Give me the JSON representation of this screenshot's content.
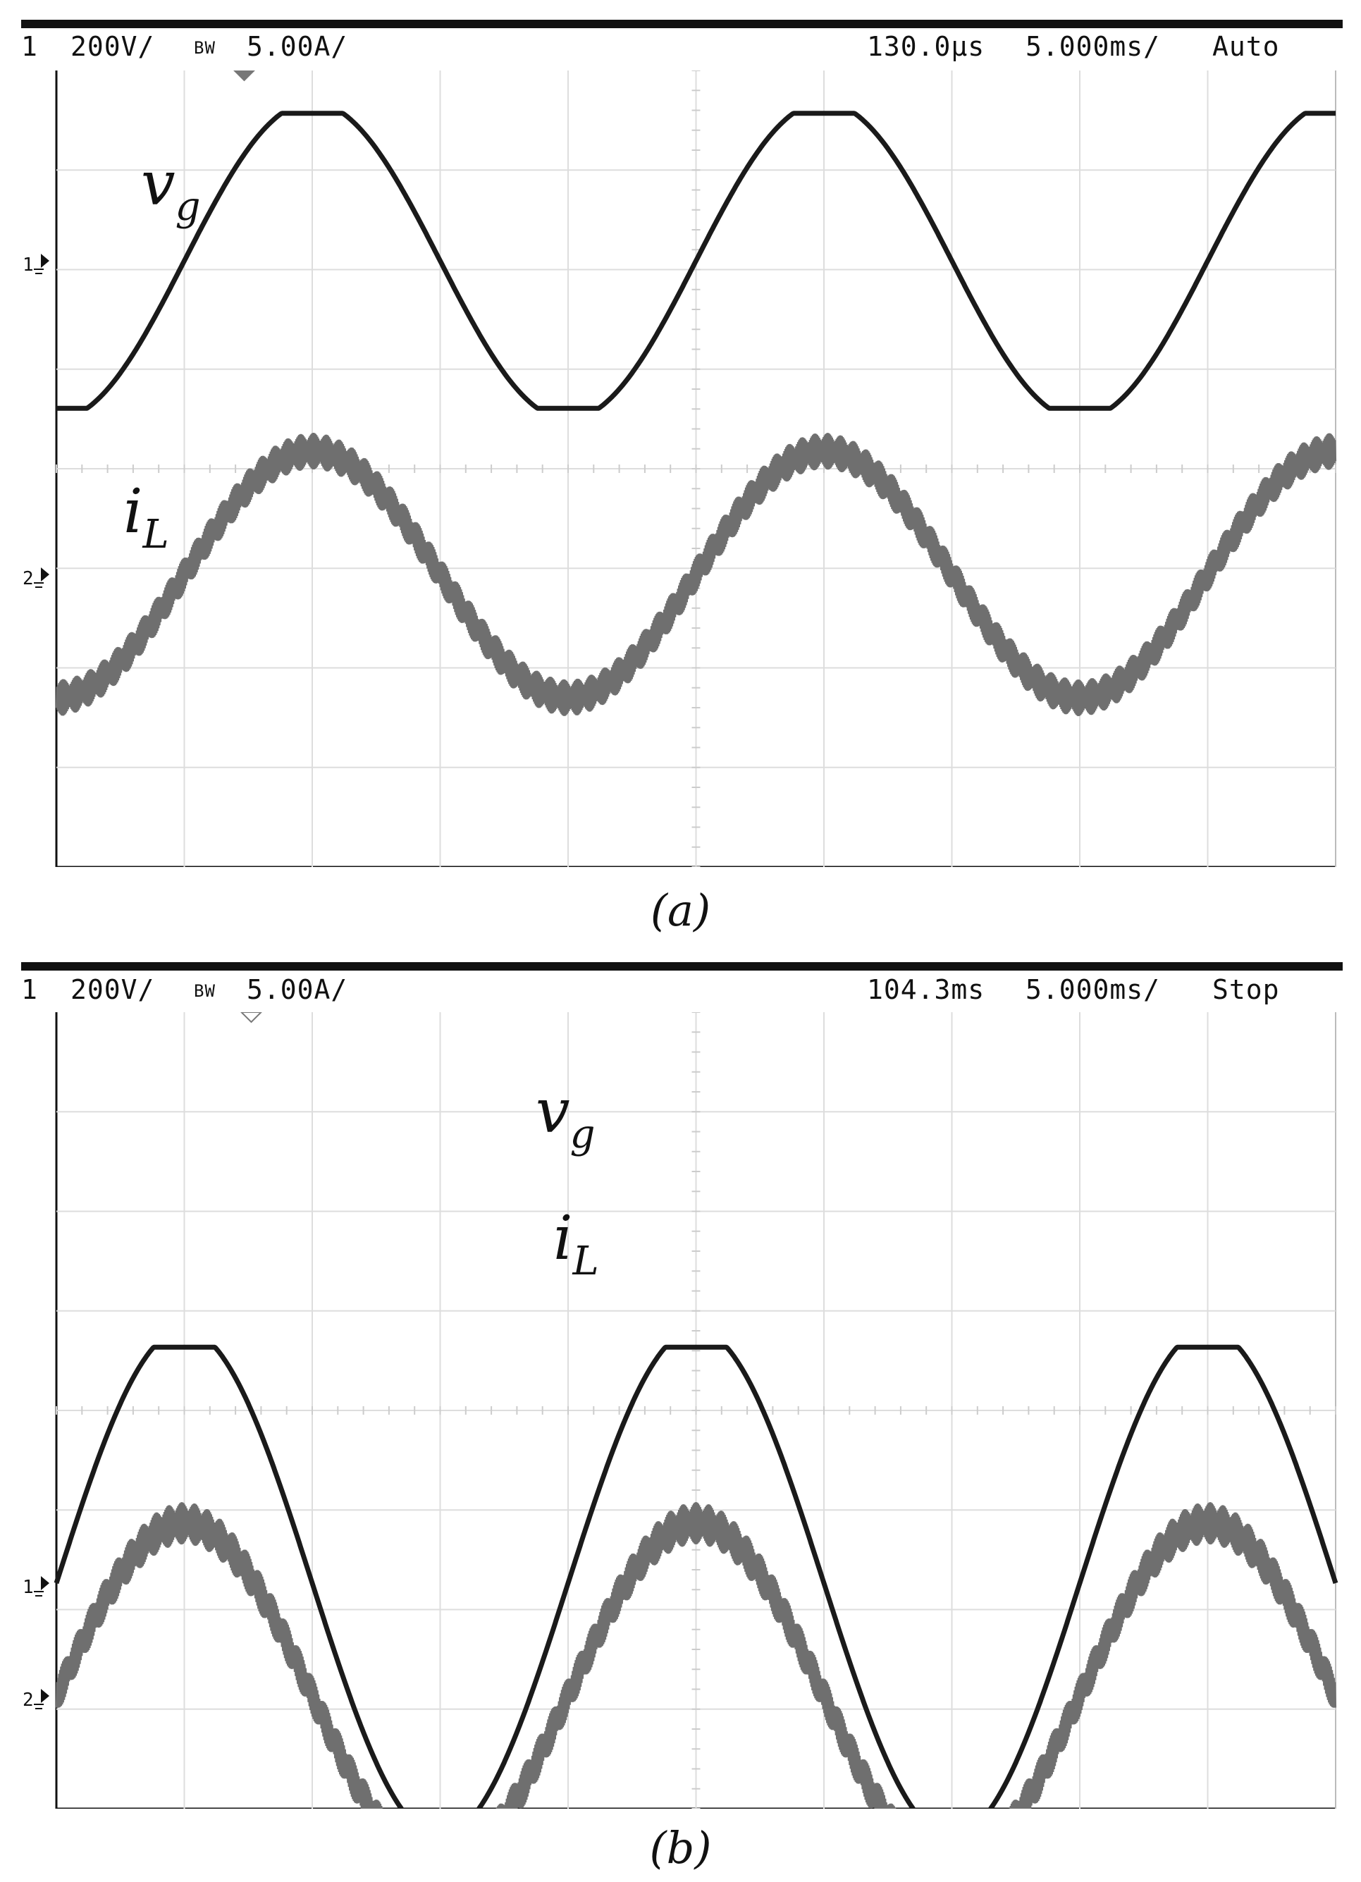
{
  "chart_data": [
    {
      "type": "line",
      "caption": "(a)",
      "status": {
        "channel": "1",
        "ch1_scale": "200V/",
        "bw": "BW",
        "ch2_scale": "5.00A/",
        "position": "130.0µs",
        "timebase": "5.000ms/",
        "mode": "Auto"
      },
      "series": [
        {
          "name": "v_g",
          "label_main": "v",
          "label_sub": "g",
          "color": "#1a1a1a",
          "shape": "clipped-sine",
          "cycles": 2.5,
          "phase_start_deg": -90
        },
        {
          "name": "i_L",
          "label_main": "i",
          "label_sub": "L",
          "color": "#6f6f6f",
          "shape": "sine-with-ripple",
          "cycles": 2.5,
          "phase_start_deg": -90
        }
      ],
      "grid": true,
      "x_divisions": 10,
      "y_divisions": 8
    },
    {
      "type": "line",
      "caption": "(b)",
      "status": {
        "channel": "1",
        "ch1_scale": "200V/",
        "bw": "BW",
        "ch2_scale": "5.00A/",
        "position": "104.3ms",
        "timebase": "5.000ms/",
        "mode": "Stop"
      },
      "series": [
        {
          "name": "v_g",
          "label_main": "v",
          "label_sub": "g",
          "color": "#1a1a1a",
          "shape": "clipped-sine",
          "cycles": 2.5,
          "phase_start_deg": 0
        },
        {
          "name": "i_L",
          "label_main": "i",
          "label_sub": "L",
          "color": "#6f6f6f",
          "shape": "sine-with-ripple",
          "cycles": 2.5,
          "phase_start_deg": 0
        }
      ],
      "grid": true,
      "x_divisions": 10,
      "y_divisions": 8
    }
  ]
}
